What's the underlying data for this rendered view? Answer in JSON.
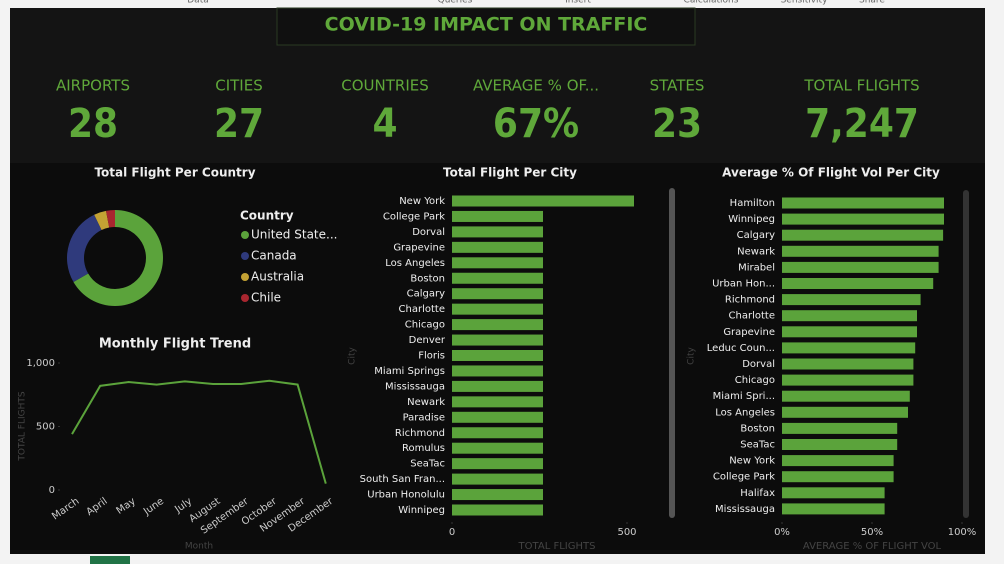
{
  "ribbon": [
    "Data",
    "Queries",
    "Insert",
    "Calculations",
    "Sensitivity",
    "Share"
  ],
  "header": {
    "title": "COVID-19 IMPACT ON TRAFFIC"
  },
  "kpis": [
    {
      "label": "AIRPORTS",
      "value": "28"
    },
    {
      "label": "CITIES",
      "value": "27"
    },
    {
      "label": "COUNTRIES",
      "value": "4"
    },
    {
      "label": "AVERAGE % OF...",
      "value": "67%"
    },
    {
      "label": "STATES",
      "value": "23"
    },
    {
      "label": "TOTAL FLIGHTS",
      "value": "7,247"
    }
  ],
  "chart_data": [
    {
      "type": "pie",
      "title": "Total Flight Per Country",
      "legend_title": "Country",
      "categories": [
        "United State...",
        "Canada",
        "Australia",
        "Chile"
      ],
      "values": [
        4830,
        1900,
        300,
        217
      ],
      "colors": [
        "#5ba33b",
        "#2f3a7c",
        "#c4a234",
        "#a8262f"
      ]
    },
    {
      "type": "line",
      "title": "Monthly Flight Trend",
      "x_label": "Month",
      "y_label": "TOTAL FLIGHTS",
      "categories": [
        "March",
        "April",
        "May",
        "June",
        "July",
        "August",
        "September",
        "October",
        "November",
        "December"
      ],
      "values": [
        440,
        820,
        850,
        830,
        855,
        835,
        835,
        860,
        830,
        50
      ],
      "color": "#5ba33b",
      "ylim": [
        0,
        1000
      ],
      "yticks": [
        0,
        500,
        {
          "value": 1000,
          "label": "1,000"
        }
      ]
    },
    {
      "type": "barh",
      "title": "Total Flight Per City",
      "x_label": "TOTAL FLIGHTS",
      "y_label": "City",
      "categories": [
        "New York",
        "College Park",
        "Dorval",
        "Grapevine",
        "Los Angeles",
        "Boston",
        "Calgary",
        "Charlotte",
        "Chicago",
        "Denver",
        "Floris",
        "Miami Springs",
        "Mississauga",
        "Newark",
        "Paradise",
        "Richmond",
        "Romulus",
        "SeaTac",
        "South San Fran...",
        "Urban Honolulu",
        "Winnipeg"
      ],
      "values": [
        520,
        260,
        260,
        260,
        260,
        260,
        260,
        260,
        260,
        260,
        260,
        260,
        260,
        260,
        260,
        260,
        260,
        260,
        260,
        260,
        260
      ],
      "color": "#5ba33b",
      "xlim": [
        0,
        600
      ],
      "xticks": [
        0,
        500
      ]
    },
    {
      "type": "barh",
      "title": "Average % Of Flight Vol Per City",
      "x_label": "AVERAGE % OF FLIGHT VOL",
      "y_label": "City",
      "categories": [
        "Hamilton",
        "Winnipeg",
        "Calgary",
        "Newark",
        "Mirabel",
        "Urban Hon...",
        "Richmond",
        "Charlotte",
        "Grapevine",
        "Leduc Coun...",
        "Dorval",
        "Chicago",
        "Miami Spri...",
        "Los Angeles",
        "Boston",
        "SeaTac",
        "New York",
        "College Park",
        "Halifax",
        "Mississauga"
      ],
      "values": [
        90,
        90,
        89.5,
        87,
        87,
        84,
        77,
        75,
        75,
        74,
        73,
        73,
        71,
        70,
        64,
        64,
        62,
        62,
        57,
        57
      ],
      "color": "#5ba33b",
      "xlim": [
        0,
        100
      ],
      "xticks": [
        {
          "value": 0,
          "label": "0%"
        },
        {
          "value": 50,
          "label": "50%"
        },
        {
          "value": 100,
          "label": "100%"
        }
      ]
    }
  ]
}
